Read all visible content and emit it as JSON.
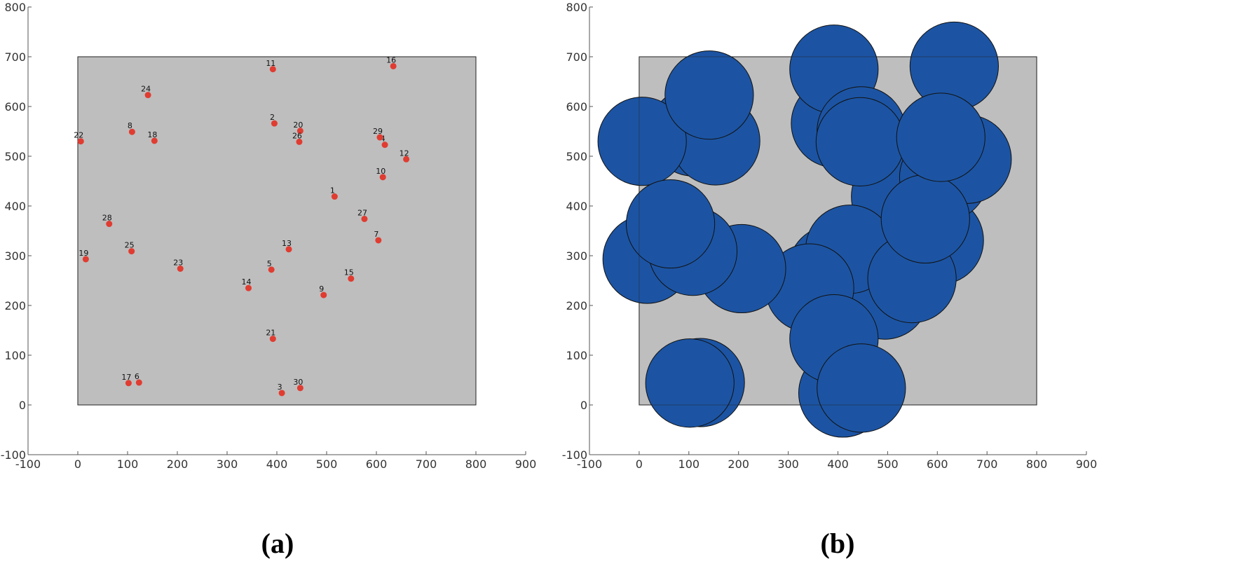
{
  "panels": [
    {
      "caption": "(a)",
      "chart_data": {
        "type": "scatter",
        "xlim": [
          -100,
          900
        ],
        "ylim": [
          -100,
          800
        ],
        "xticks": [
          -100,
          0,
          100,
          200,
          300,
          400,
          500,
          600,
          700,
          800,
          900
        ],
        "yticks": [
          -100,
          0,
          100,
          200,
          300,
          400,
          500,
          600,
          700,
          800
        ],
        "grid": false,
        "region": {
          "x": [
            0,
            800
          ],
          "y": [
            0,
            700
          ],
          "fill": "#bebebe"
        },
        "marker_color": "#e03c31",
        "points": [
          {
            "id": "1",
            "x": 516,
            "y": 419
          },
          {
            "id": "2",
            "x": 395,
            "y": 566
          },
          {
            "id": "3",
            "x": 410,
            "y": 24
          },
          {
            "id": "4",
            "x": 617,
            "y": 523
          },
          {
            "id": "5",
            "x": 389,
            "y": 272
          },
          {
            "id": "6",
            "x": 123,
            "y": 45
          },
          {
            "id": "7",
            "x": 604,
            "y": 331
          },
          {
            "id": "8",
            "x": 109,
            "y": 549
          },
          {
            "id": "9",
            "x": 494,
            "y": 221
          },
          {
            "id": "10",
            "x": 613,
            "y": 458
          },
          {
            "id": "11",
            "x": 392,
            "y": 675
          },
          {
            "id": "12",
            "x": 660,
            "y": 494
          },
          {
            "id": "13",
            "x": 424,
            "y": 313
          },
          {
            "id": "14",
            "x": 343,
            "y": 235
          },
          {
            "id": "15",
            "x": 549,
            "y": 254
          },
          {
            "id": "16",
            "x": 634,
            "y": 681
          },
          {
            "id": "17",
            "x": 102,
            "y": 44
          },
          {
            "id": "18",
            "x": 154,
            "y": 531
          },
          {
            "id": "19",
            "x": 16,
            "y": 293
          },
          {
            "id": "20",
            "x": 447,
            "y": 551
          },
          {
            "id": "21",
            "x": 392,
            "y": 133
          },
          {
            "id": "22",
            "x": 6,
            "y": 530
          },
          {
            "id": "23",
            "x": 206,
            "y": 274
          },
          {
            "id": "24",
            "x": 141,
            "y": 623
          },
          {
            "id": "25",
            "x": 108,
            "y": 309
          },
          {
            "id": "26",
            "x": 445,
            "y": 529
          },
          {
            "id": "27",
            "x": 576,
            "y": 374
          },
          {
            "id": "28",
            "x": 63,
            "y": 364
          },
          {
            "id": "29",
            "x": 607,
            "y": 538
          },
          {
            "id": "30",
            "x": 447,
            "y": 34
          }
        ]
      }
    },
    {
      "caption": "(b)",
      "chart_data": {
        "type": "scatter",
        "xlim": [
          -100,
          900
        ],
        "ylim": [
          -100,
          800
        ],
        "xticks": [
          -100,
          0,
          100,
          200,
          300,
          400,
          500,
          600,
          700,
          800,
          900
        ],
        "yticks": [
          -100,
          0,
          100,
          200,
          300,
          400,
          500,
          600,
          700,
          800
        ],
        "grid": false,
        "region": {
          "x": [
            0,
            800
          ],
          "y": [
            0,
            700
          ],
          "fill": "#bebebe"
        },
        "circle_radius": 89,
        "circle_color": "#1c54a3",
        "circle_stroke": "#111111",
        "centers": [
          {
            "x": 516,
            "y": 419
          },
          {
            "x": 395,
            "y": 566
          },
          {
            "x": 410,
            "y": 24
          },
          {
            "x": 617,
            "y": 523
          },
          {
            "x": 389,
            "y": 272
          },
          {
            "x": 123,
            "y": 45
          },
          {
            "x": 604,
            "y": 331
          },
          {
            "x": 109,
            "y": 549
          },
          {
            "x": 494,
            "y": 221
          },
          {
            "x": 613,
            "y": 458
          },
          {
            "x": 392,
            "y": 675
          },
          {
            "x": 660,
            "y": 494
          },
          {
            "x": 424,
            "y": 313
          },
          {
            "x": 343,
            "y": 235
          },
          {
            "x": 549,
            "y": 254
          },
          {
            "x": 634,
            "y": 681
          },
          {
            "x": 102,
            "y": 44
          },
          {
            "x": 154,
            "y": 531
          },
          {
            "x": 16,
            "y": 293
          },
          {
            "x": 447,
            "y": 551
          },
          {
            "x": 392,
            "y": 133
          },
          {
            "x": 6,
            "y": 530
          },
          {
            "x": 206,
            "y": 274
          },
          {
            "x": 141,
            "y": 623
          },
          {
            "x": 108,
            "y": 309
          },
          {
            "x": 445,
            "y": 529
          },
          {
            "x": 576,
            "y": 374
          },
          {
            "x": 63,
            "y": 364
          },
          {
            "x": 607,
            "y": 538
          },
          {
            "x": 447,
            "y": 34
          }
        ]
      }
    }
  ]
}
